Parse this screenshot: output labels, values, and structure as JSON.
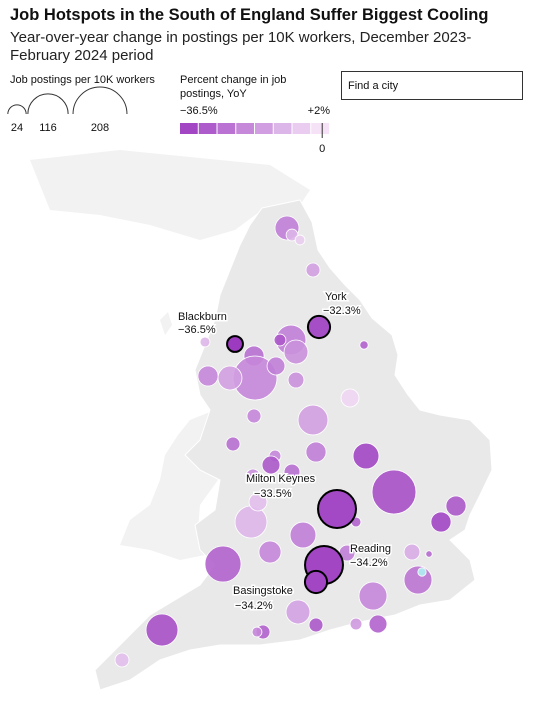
{
  "title": "Job Hotspots in the South of England Suffer Biggest Cooling",
  "subtitle": "Year-over-year change in postings per 10K workers, December 2023-February 2024 period",
  "search_placeholder": "Find a city",
  "size_legend": {
    "title": "Job postings per 10K workers",
    "values": [
      24,
      116,
      208
    ]
  },
  "color_legend": {
    "title": "Percent change in job postings, YoY",
    "min": {
      "value": -36.5,
      "label": "−36.5%"
    },
    "max": {
      "value": 2,
      "label": "+2%"
    },
    "zero": 0,
    "colors": {
      "low": "#9c3bc0",
      "mid": "#f6e4f8",
      "high": "#aeeef1"
    }
  },
  "cities": [
    {
      "name": "York",
      "label": "−32.3%",
      "change": -32.3,
      "postings": 35
    },
    {
      "name": "Blackburn",
      "label": "−36.5%",
      "change": -36.5,
      "postings": 18
    },
    {
      "name": "Milton Keynes",
      "label": "−33.5%",
      "change": -33.5,
      "postings": 103
    },
    {
      "name": "Reading",
      "label": "−34.2%",
      "change": -34.2,
      "postings": 103
    },
    {
      "name": "Basingstoke",
      "label": "−34.2%",
      "change": -34.2,
      "postings": 35
    }
  ],
  "bubbles": [
    {
      "postings": 41,
      "change": -22
    },
    {
      "postings": 10,
      "change": -10
    },
    {
      "postings": 7,
      "change": -5
    },
    {
      "postings": 14,
      "change": -15
    },
    {
      "postings": 64,
      "change": -22
    },
    {
      "postings": 41,
      "change": -18
    },
    {
      "postings": 10,
      "change": -30
    },
    {
      "postings": 7,
      "change": -10
    },
    {
      "postings": 29,
      "change": -25
    },
    {
      "postings": 138,
      "change": -20
    },
    {
      "postings": 41,
      "change": -15
    },
    {
      "postings": 29,
      "change": -20
    },
    {
      "postings": 23,
      "change": -22
    },
    {
      "postings": 18,
      "change": -18
    },
    {
      "postings": 5,
      "change": -28
    },
    {
      "postings": 64,
      "change": -15
    },
    {
      "postings": 23,
      "change": -3
    },
    {
      "postings": 14,
      "change": -20
    },
    {
      "postings": 14,
      "change": -25
    },
    {
      "postings": 29,
      "change": -22
    },
    {
      "postings": 48,
      "change": -34
    },
    {
      "postings": 10,
      "change": -20
    },
    {
      "postings": 23,
      "change": -30
    },
    {
      "postings": 18,
      "change": -25
    },
    {
      "postings": 14,
      "change": -18
    },
    {
      "postings": 138,
      "change": -32
    },
    {
      "postings": 29,
      "change": -30
    },
    {
      "postings": 29,
      "change": -34
    },
    {
      "postings": 73,
      "change": -10
    },
    {
      "postings": 23,
      "change": -8
    },
    {
      "postings": 48,
      "change": -22
    },
    {
      "postings": 35,
      "change": -20
    },
    {
      "postings": 7,
      "change": -28
    },
    {
      "postings": 93,
      "change": -28
    },
    {
      "postings": 18,
      "change": -22
    },
    {
      "postings": 18,
      "change": -12
    },
    {
      "postings": 3,
      "change": -26
    },
    {
      "postings": 56,
      "change": -24
    },
    {
      "postings": 5,
      "change": 2
    },
    {
      "postings": 56,
      "change": -20
    },
    {
      "postings": 41,
      "change": -14
    },
    {
      "postings": 14,
      "change": -30
    },
    {
      "postings": 10,
      "change": -16
    },
    {
      "postings": 23,
      "change": -28
    },
    {
      "postings": 14,
      "change": -28
    },
    {
      "postings": 7,
      "change": -20
    },
    {
      "postings": 73,
      "change": -32
    },
    {
      "postings": 14,
      "change": -8
    }
  ]
}
